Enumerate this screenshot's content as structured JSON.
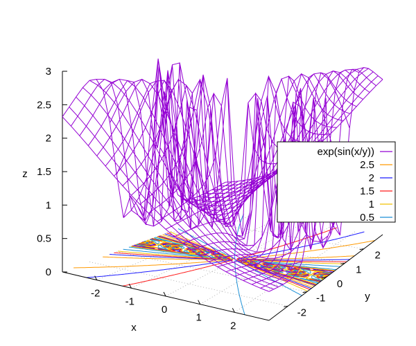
{
  "chart_data": {
    "type": "surface",
    "function": "exp(sin(x/y))",
    "xlabel": "x",
    "ylabel": "y",
    "zlabel": "z",
    "x_range": [
      -3,
      3
    ],
    "y_range": [
      -3,
      3
    ],
    "z_range": [
      0,
      3
    ],
    "x_ticks": [
      "-2",
      "-1",
      "0",
      "1",
      "2"
    ],
    "y_ticks": [
      "-2",
      "-1",
      "0",
      "1",
      "2"
    ],
    "z_ticks": [
      "0",
      "0.5",
      "1",
      "1.5",
      "2",
      "2.5",
      "3"
    ],
    "grid_samples": 25,
    "surface_color": "#9400d3",
    "contour_levels": [
      {
        "label": "2.5",
        "value": 2.5,
        "color": "#ff9900"
      },
      {
        "label": "2",
        "value": 2,
        "color": "#1a1aff"
      },
      {
        "label": "1.5",
        "value": 1.5,
        "color": "#ff1a1a"
      },
      {
        "label": "1",
        "value": 1,
        "color": "#f0c000"
      },
      {
        "label": "0.5",
        "value": 0.5,
        "color": "#1a8fd6"
      }
    ],
    "legend_position": "right",
    "legend": [
      {
        "label": "exp(sin(x/y))",
        "color": "#9400d3"
      },
      {
        "label": "2.5",
        "color": "#ff9900"
      },
      {
        "label": "2",
        "color": "#1a1aff"
      },
      {
        "label": "1.5",
        "color": "#ff1a1a"
      },
      {
        "label": "1",
        "color": "#f0c000"
      },
      {
        "label": "0.5",
        "color": "#1a8fd6"
      }
    ]
  }
}
